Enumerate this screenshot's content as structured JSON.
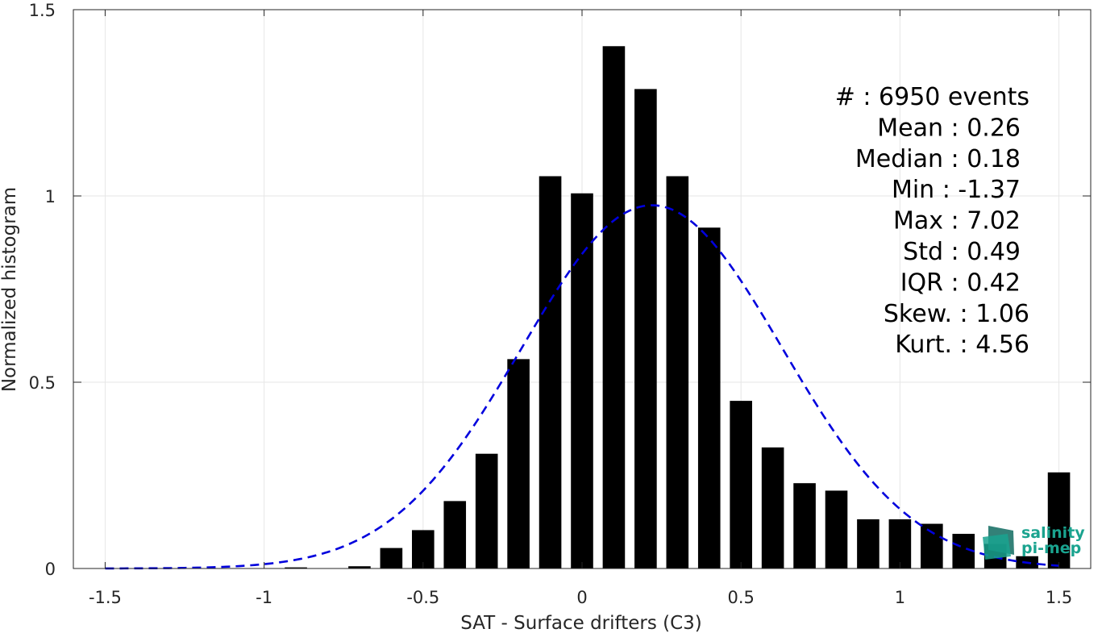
{
  "chart_data": {
    "type": "bar",
    "xlabel": "SAT - Surface drifters (C3)",
    "ylabel": "Normalized histogram",
    "xlim": [
      -1.6,
      1.6
    ],
    "ylim": [
      0,
      1.5
    ],
    "xticks": [
      -1.5,
      -1,
      -0.5,
      0,
      0.5,
      1,
      1.5
    ],
    "xtick_labels": [
      "-1.5",
      "-1",
      "-0.5",
      "0",
      "0.5",
      "1",
      "1.5"
    ],
    "yticks": [
      0,
      0.5,
      1,
      1.5
    ],
    "ytick_labels": [
      "0",
      "0.5",
      "1",
      "1.5"
    ],
    "grid": true,
    "bar_color": "#000000",
    "bins": {
      "centers": [
        -0.9,
        -0.8,
        -0.7,
        -0.6,
        -0.5,
        -0.4,
        -0.3,
        -0.2,
        -0.1,
        0.0,
        0.1,
        0.2,
        0.3,
        0.4,
        0.5,
        0.6,
        0.7,
        0.8,
        0.9,
        1.0,
        1.1,
        1.2,
        1.3,
        1.4,
        1.5
      ],
      "values": [
        0.003,
        0.0,
        0.006,
        0.055,
        0.103,
        0.181,
        0.308,
        0.562,
        1.053,
        1.007,
        1.402,
        1.287,
        1.053,
        0.915,
        0.45,
        0.325,
        0.229,
        0.209,
        0.132,
        0.132,
        0.12,
        0.093,
        0.066,
        0.033,
        0.258
      ]
    },
    "fit_curve": {
      "type": "gaussian",
      "mean": 0.22,
      "std": 0.41,
      "peak": 0.975,
      "x_range": [
        -1.5,
        1.5
      ],
      "color": "#0000dd",
      "style": "dashed"
    }
  },
  "stats": [
    {
      "label": "#  : 6950 events",
      "anchor": "r1"
    },
    {
      "label": "Mean : 0.26",
      "anchor": "r2"
    },
    {
      "label": "Median : 0.18",
      "anchor": "r2"
    },
    {
      "label": "Min : -1.37",
      "anchor": "r2"
    },
    {
      "label": "Max : 7.02",
      "anchor": "r2"
    },
    {
      "label": "Std : 0.49",
      "anchor": "r2"
    },
    {
      "label": "IQR : 0.42",
      "anchor": "r2"
    },
    {
      "label": "Skew. : 1.06",
      "anchor": "r1"
    },
    {
      "label": "Kurt. : 4.56",
      "anchor": "r1"
    }
  ],
  "logo": {
    "line1": "salinity",
    "line2": "pi-mep",
    "color_primary": "#1aa38f",
    "color_dark": "#0f6b60"
  }
}
